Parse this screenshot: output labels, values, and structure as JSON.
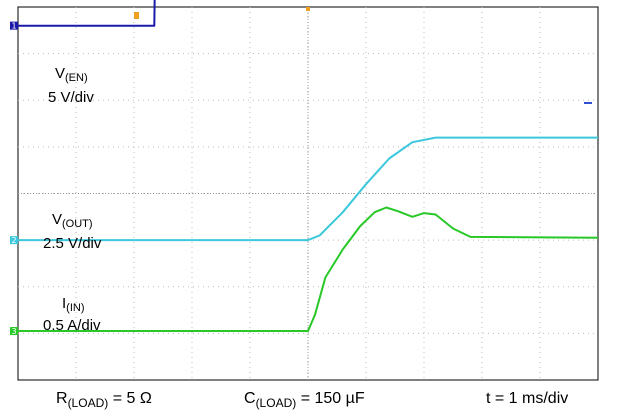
{
  "chart_data": {
    "type": "line",
    "x_divisions": 10,
    "y_divisions": 8,
    "series": [
      {
        "name": "V",
        "name_sub": "(EN)",
        "scale": "5 V/div",
        "color": "#1a1aa8",
        "channel": "1",
        "x": [
          0,
          2.35,
          2.36,
          10
        ],
        "y": [
          3.6,
          3.6,
          4.55,
          4.55
        ]
      },
      {
        "name": "V",
        "name_sub": "(OUT)",
        "scale": "2.5 V/div",
        "color": "#3cc8dc",
        "channel": "2",
        "x": [
          0,
          5.0,
          5.2,
          5.6,
          6.0,
          6.4,
          6.8,
          7.2,
          10
        ],
        "y": [
          -1.0,
          -1.0,
          -0.9,
          -0.4,
          0.2,
          0.75,
          1.1,
          1.2,
          1.2
        ]
      },
      {
        "name": "I",
        "name_sub": "(IN)",
        "scale": "0.5 A/div",
        "color": "#28c828",
        "channel": "3",
        "x": [
          0,
          5.0,
          5.12,
          5.3,
          5.6,
          5.9,
          6.15,
          6.35,
          6.55,
          6.8,
          7.0,
          7.2,
          7.5,
          7.8,
          10
        ],
        "y": [
          -2.95,
          -2.95,
          -2.6,
          -1.8,
          -1.2,
          -0.7,
          -0.4,
          -0.3,
          -0.38,
          -0.5,
          -0.42,
          -0.45,
          -0.75,
          -0.93,
          -0.95
        ]
      }
    ],
    "bottom_labels": {
      "r_load": {
        "main": "R",
        "sub": "(LOAD)",
        "value": "= 5 Ω"
      },
      "c_load": {
        "main": "C",
        "sub": "(LOAD)",
        "value": "= 150 µF"
      },
      "timebase": "t = 1 ms/div"
    }
  }
}
